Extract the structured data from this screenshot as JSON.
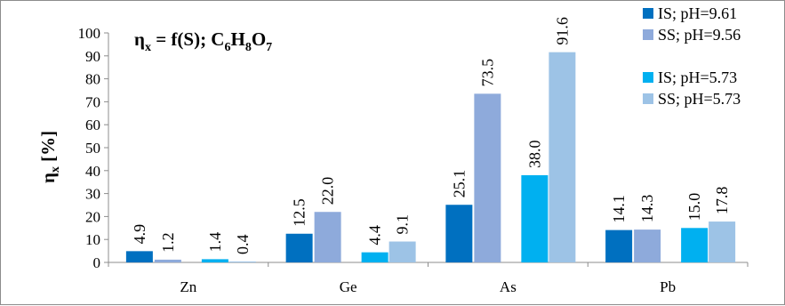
{
  "chart_data": {
    "type": "bar",
    "title_parts": {
      "eta": "η",
      "eta_sub": "x",
      "eq_fs": " = f(S); C",
      "c_sub": "6",
      "h": "H",
      "h_sub": "8",
      "o": "O",
      "o_sub": "7"
    },
    "ylabel_parts": {
      "eta": "η",
      "eta_sub": "x",
      "unit": " [%]"
    },
    "categories": [
      "Zn",
      "Ge",
      "As",
      "Pb"
    ],
    "ylim": [
      0,
      100
    ],
    "yticks": [
      0,
      10,
      20,
      30,
      40,
      50,
      60,
      70,
      80,
      90,
      100
    ],
    "grid": false,
    "legend_position": "top-right",
    "series": [
      {
        "name": "IS; pH=9.61",
        "color": "#0070c0",
        "values": [
          4.9,
          12.5,
          25.1,
          14.1
        ],
        "labels": [
          "4.9",
          "12.5",
          "25.1",
          "14.1"
        ]
      },
      {
        "name": "SS; pH=9.56",
        "color": "#8eaadb",
        "values": [
          1.2,
          22.0,
          73.5,
          14.3
        ],
        "labels": [
          "1.2",
          "22.0",
          "73.5",
          "14.3"
        ]
      },
      {
        "name": "IS; pH=5.73",
        "color": "#00b0f0",
        "values": [
          1.4,
          4.4,
          38.0,
          15.0
        ],
        "labels": [
          "1.4",
          "4.4",
          "38.0",
          "15.0"
        ]
      },
      {
        "name": "SS; pH=5.73",
        "color": "#9dc3e6",
        "values": [
          0.4,
          9.1,
          91.6,
          17.8
        ],
        "labels": [
          "0.4",
          "9.1",
          "91.6",
          "17.8"
        ]
      }
    ]
  }
}
